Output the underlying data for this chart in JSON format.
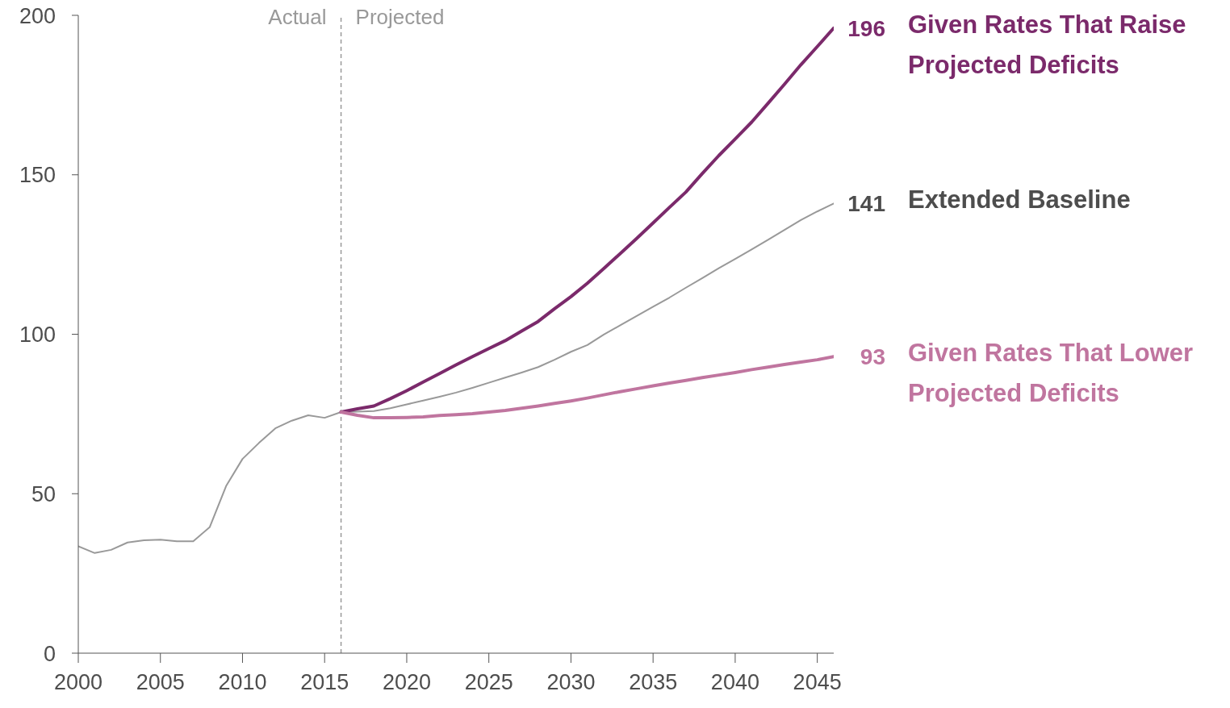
{
  "chart_data": {
    "type": "line",
    "xlim": [
      2000,
      2046
    ],
    "xticks": [
      2000,
      2005,
      2010,
      2015,
      2020,
      2025,
      2030,
      2035,
      2040,
      2045
    ],
    "ylim": [
      0,
      200
    ],
    "yticks": [
      0,
      50,
      100,
      150,
      200
    ],
    "grid": false,
    "legend": false,
    "marker": "none",
    "line_style": "solid",
    "ref_lines": [
      {
        "axis": "x",
        "value": 2016,
        "label": null,
        "color": "#999999",
        "line_style": "dashed"
      }
    ],
    "annotations": [
      {
        "text": "Actual",
        "x": 2016,
        "y": 200
      },
      {
        "text": "Projected",
        "x": 2016,
        "y": 200
      }
    ],
    "series": [
      {
        "name": "Extended Baseline",
        "color": "#999999",
        "x": [
          2000,
          2001,
          2002,
          2003,
          2004,
          2005,
          2006,
          2007,
          2008,
          2009,
          2010,
          2011,
          2012,
          2013,
          2014,
          2015,
          2016,
          2017,
          2018,
          2019,
          2020,
          2021,
          2022,
          2023,
          2024,
          2025,
          2026,
          2027,
          2028,
          2029,
          2030,
          2031,
          2032,
          2033,
          2034,
          2035,
          2036,
          2037,
          2038,
          2039,
          2040,
          2041,
          2042,
          2043,
          2044,
          2045,
          2046
        ],
        "values": [
          33.5,
          31.4,
          32.4,
          34.7,
          35.4,
          35.6,
          35.1,
          35.1,
          39.5,
          52.4,
          60.9,
          65.9,
          70.5,
          72.9,
          74.6,
          73.8,
          75.6,
          75.7,
          75.9,
          76.8,
          78,
          79.2,
          80.4,
          81.7,
          83.2,
          84.8,
          86.4,
          88,
          89.7,
          92,
          94.5,
          96.6,
          99.9,
          102.8,
          105.7,
          108.6,
          111.5,
          114.6,
          117.6,
          120.7,
          123.6,
          126.6,
          129.6,
          132.7,
          135.8,
          138.5,
          141
        ],
        "value_labels": [
          null,
          null,
          null,
          null,
          null,
          null,
          null,
          null,
          null,
          null,
          null,
          null,
          null,
          null,
          null,
          null,
          null,
          null,
          null,
          null,
          null,
          null,
          null,
          null,
          null,
          null,
          null,
          null,
          null,
          null,
          null,
          null,
          null,
          null,
          null,
          null,
          null,
          null,
          null,
          null,
          null,
          null,
          null,
          null,
          null,
          null,
          "141"
        ]
      },
      {
        "name": "Given Rates That Raise Projected Deficits",
        "color": "#7b2a6b",
        "x": [
          2016,
          2017,
          2018,
          2019,
          2020,
          2021,
          2022,
          2023,
          2024,
          2025,
          2026,
          2027,
          2028,
          2029,
          2030,
          2031,
          2032,
          2033,
          2034,
          2035,
          2036,
          2037,
          2038,
          2039,
          2040,
          2041,
          2042,
          2043,
          2044,
          2045,
          2046
        ],
        "values": [
          75.6,
          76.6,
          77.5,
          79.8,
          82.3,
          85,
          87.7,
          90.4,
          93,
          95.5,
          98,
          101,
          104,
          108,
          111.8,
          116,
          120.6,
          125.3,
          130,
          134.9,
          139.8,
          144.6,
          150.4,
          156,
          161.2,
          166.5,
          172.4,
          178.4,
          184.5,
          190.2,
          196
        ],
        "value_labels": [
          null,
          null,
          null,
          null,
          null,
          null,
          null,
          null,
          null,
          null,
          null,
          null,
          null,
          null,
          null,
          null,
          null,
          null,
          null,
          null,
          null,
          null,
          null,
          null,
          null,
          null,
          null,
          null,
          null,
          null,
          "196"
        ]
      },
      {
        "name": "Given Rates That Lower Projected Deficits",
        "color": "#c0759f",
        "x": [
          2016,
          2017,
          2018,
          2019,
          2020,
          2021,
          2022,
          2023,
          2024,
          2025,
          2026,
          2027,
          2028,
          2029,
          2030,
          2031,
          2032,
          2033,
          2034,
          2035,
          2036,
          2037,
          2038,
          2039,
          2040,
          2041,
          2042,
          2043,
          2044,
          2045,
          2046
        ],
        "values": [
          75.6,
          74.6,
          73.8,
          73.8,
          73.9,
          74.1,
          74.5,
          74.8,
          75.1,
          75.6,
          76.1,
          76.8,
          77.5,
          78.3,
          79.1,
          80,
          81,
          82,
          82.9,
          83.8,
          84.7,
          85.5,
          86.4,
          87.2,
          88,
          88.9,
          89.7,
          90.5,
          91.3,
          92,
          93
        ],
        "value_labels": [
          null,
          null,
          null,
          null,
          null,
          null,
          null,
          null,
          null,
          null,
          null,
          null,
          null,
          null,
          null,
          null,
          null,
          null,
          null,
          null,
          null,
          null,
          null,
          null,
          null,
          null,
          null,
          null,
          null,
          null,
          "93"
        ]
      }
    ]
  }
}
